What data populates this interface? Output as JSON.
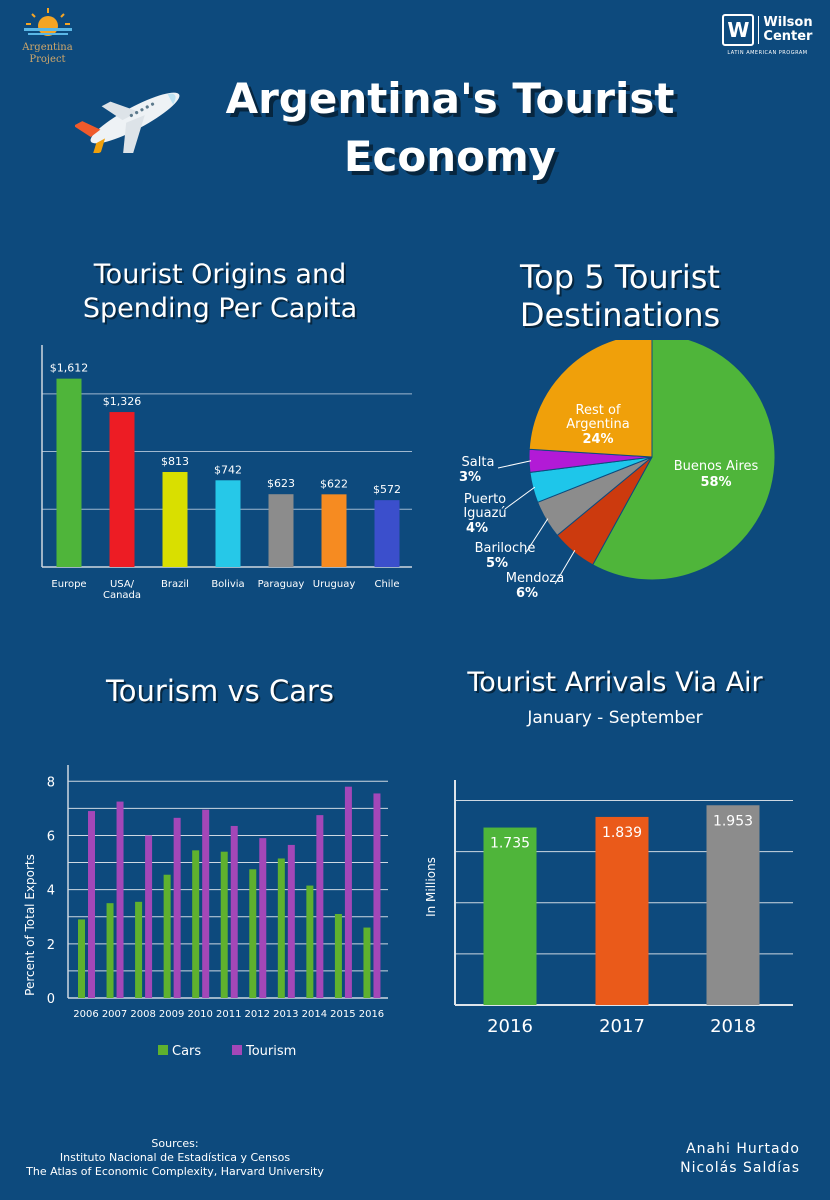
{
  "header": {
    "logo_left": {
      "line1": "Argentina",
      "line2": "Project"
    },
    "logo_right": {
      "mark": "W",
      "name_line1": "Wilson",
      "name_line2": "Center",
      "program": "LATIN AMERICAN PROGRAM"
    },
    "title_line1": "Argentina's Tourist",
    "title_line2": "Economy",
    "colors": {
      "background": "#0d4a7d",
      "gold": "#f5a524"
    }
  },
  "sources": {
    "label": "Sources:",
    "line1": "Instituto Nacional de Estadística y Censos",
    "line2": "The Atlas of Economic Complexity, Harvard University"
  },
  "authors": {
    "line1": "Anahi Hurtado",
    "line2": "Nicolás Saldías"
  },
  "chart_data": [
    {
      "type": "bar",
      "title_line1": "Tourist Origins and",
      "title_line2": "Spending Per Capita",
      "categories": [
        "Europe",
        "USA/\nCanada",
        "Brazil",
        "Bolivia",
        "Paraguay",
        "Uruguay",
        "Chile"
      ],
      "values": [
        1612,
        1326,
        813,
        742,
        623,
        622,
        572
      ],
      "value_labels": [
        "$1,612",
        "$1,326",
        "$813",
        "$742",
        "$623",
        "$622",
        "$572"
      ],
      "colors": [
        "#4fb53a",
        "#ed1c24",
        "#d9df00",
        "#26c8e8",
        "#8c8c8c",
        "#f68b21",
        "#3b4fcc"
      ],
      "ylim": [
        0,
        1900
      ],
      "grid": true
    },
    {
      "type": "pie",
      "title_line1": "Top 5 Tourist",
      "title_line2": "Destinations",
      "slices": [
        {
          "label": "Buenos Aires",
          "value": 58,
          "pct_label": "58%",
          "color": "#4fb53a"
        },
        {
          "label": "Mendoza",
          "value": 6,
          "pct_label": "6%",
          "color": "#cc3a0e"
        },
        {
          "label": "Bariloche",
          "value": 5,
          "pct_label": "5%",
          "color": "#8c8c8c"
        },
        {
          "label": "Puerto Iguazú",
          "value": 4,
          "pct_label": "4%",
          "color": "#1ec6ea"
        },
        {
          "label": "Salta",
          "value": 3,
          "pct_label": "3%",
          "color": "#b21ad6"
        },
        {
          "label": "Rest of Argentina",
          "value": 24,
          "pct_label": "24%",
          "color": "#f0a00a"
        }
      ]
    },
    {
      "type": "bar",
      "title": "Tourism vs Cars",
      "ylabel": "Percent of Total Exports",
      "categories": [
        "2006",
        "2007",
        "2008",
        "2009",
        "2010",
        "2011",
        "2012",
        "2013",
        "2014",
        "2015",
        "2016"
      ],
      "series": [
        {
          "name": "Cars",
          "color": "#5fb12e",
          "values": [
            2.9,
            3.5,
            3.55,
            4.55,
            5.45,
            5.4,
            4.75,
            5.15,
            4.15,
            3.1,
            2.6
          ]
        },
        {
          "name": "Tourism",
          "color": "#a347b8",
          "values": [
            6.9,
            7.25,
            6.0,
            6.65,
            6.95,
            6.35,
            5.9,
            5.65,
            6.75,
            7.8,
            7.55
          ]
        }
      ],
      "yticks": [
        0,
        2,
        4,
        6,
        8
      ],
      "ylim": [
        0,
        8.6
      ],
      "grid": true,
      "legend": "bottom"
    },
    {
      "type": "bar",
      "title": "Tourist Arrivals Via Air",
      "subtitle": "January - September",
      "ylabel": "In Millions",
      "categories": [
        "2016",
        "2017",
        "2018"
      ],
      "values": [
        1.735,
        1.839,
        1.953
      ],
      "value_labels": [
        "1.735",
        "1.839",
        "1.953"
      ],
      "colors": [
        "#4fb53a",
        "#ea5a1a",
        "#8c8c8c"
      ],
      "ylim": [
        0,
        2.2
      ],
      "grid": true
    }
  ]
}
